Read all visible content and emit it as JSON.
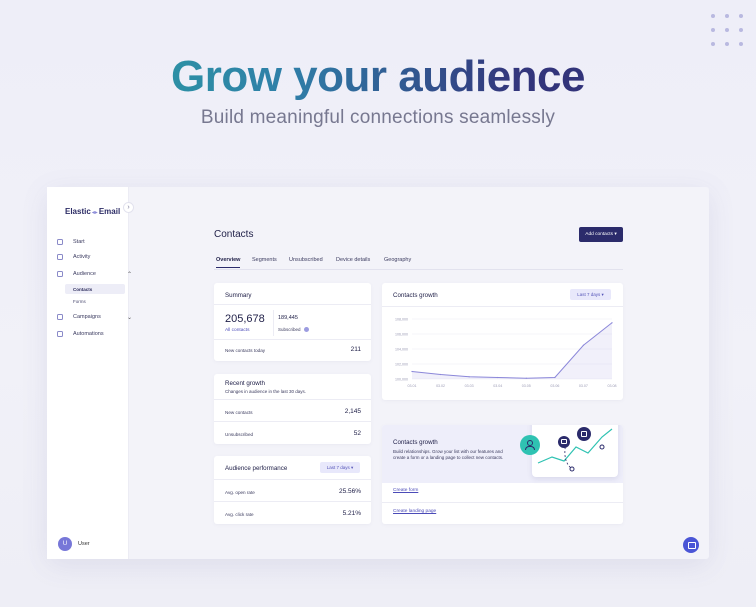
{
  "hero": {
    "title": "Grow your audience",
    "subtitle": "Build meaningful connections seamlessly"
  },
  "brand": {
    "name_left": "Elastic",
    "name_right": "Email"
  },
  "sidebar": {
    "items": [
      {
        "label": "Start",
        "icon": "start-icon"
      },
      {
        "label": "Activity",
        "icon": "activity-icon"
      },
      {
        "label": "Audience",
        "icon": "audience-icon",
        "expanded": true
      },
      {
        "label": "Campaigns",
        "icon": "campaigns-icon"
      },
      {
        "label": "Automations",
        "icon": "automations-icon"
      }
    ],
    "sub_items": [
      {
        "label": "Contacts",
        "active": true
      },
      {
        "label": "Forms",
        "active": false
      }
    ],
    "user": {
      "initial": "U",
      "name": "User"
    }
  },
  "header": {
    "title": "Contacts",
    "add_button": "Add contacts ▾"
  },
  "tabs": [
    "Overview",
    "Segments",
    "Unsubscribed",
    "Device details",
    "Geography"
  ],
  "summary": {
    "title": "Summary",
    "all_contacts_value": "205,678",
    "all_contacts_label": "All contacts",
    "subscribed_value": "189,445",
    "subscribed_label": "Subscribed",
    "new_today_label": "New contacts today",
    "new_today_value": "211"
  },
  "recent_growth": {
    "title": "Recent growth",
    "subtitle": "Changes in audience in the last 30 days.",
    "rows": [
      {
        "label": "New contacts",
        "value": "2,145"
      },
      {
        "label": "Unsubscribed",
        "value": "52"
      }
    ]
  },
  "audience_performance": {
    "title": "Audience performance",
    "range": "Last 7 days ▾",
    "rows": [
      {
        "label": "Avg. open rate",
        "value": "25.56%"
      },
      {
        "label": "Avg. click rate",
        "value": "5.21%"
      }
    ]
  },
  "contacts_growth_chart": {
    "title": "Contacts growth",
    "range": "Last 7 days ▾"
  },
  "chart_data": {
    "type": "area",
    "title": "Contacts growth",
    "x": [
      "03.01",
      "03.02",
      "03.03",
      "03.04",
      "03.05",
      "03.06",
      "03.07",
      "03.08"
    ],
    "series": [
      {
        "values": [
          101000,
          100600,
          100300,
          100200,
          100100,
          100200,
          104500,
          107500
        ]
      }
    ],
    "yticks": [
      "108,000",
      "106,000",
      "104,000",
      "102,000",
      "100,000"
    ],
    "ylim": [
      100000,
      108000
    ],
    "grid": true,
    "color": "#8b87d9"
  },
  "promo": {
    "title": "Contacts growth",
    "text": "Build relationships. Grow your list with our features and create a form or a landing page to collect new contacts.",
    "links": [
      "Create form",
      "Create landing page"
    ]
  },
  "colors": {
    "primary": "#2b2b6b",
    "accent": "#7f7be0",
    "teal": "#2fc2b2"
  }
}
